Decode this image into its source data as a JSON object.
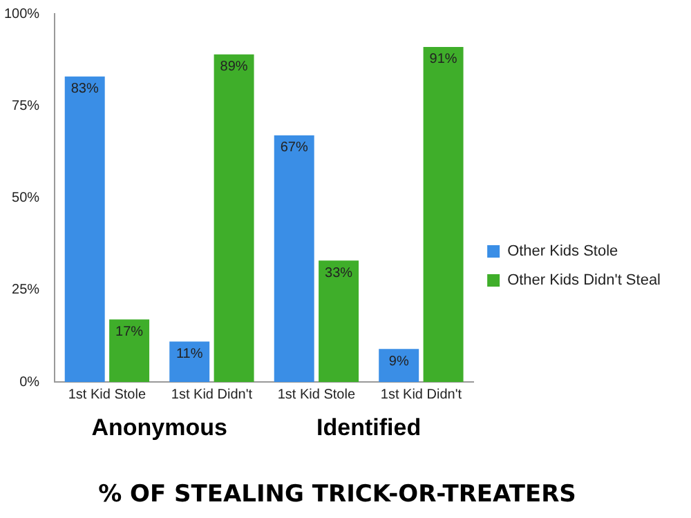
{
  "chart_data": {
    "type": "bar",
    "title": "% OF STEALING TRICK-OR-TREATERS",
    "categories": [
      "1st Kid Stole",
      "1st Kid Didn't",
      "1st Kid Stole",
      "1st Kid Didn't"
    ],
    "series": [
      {
        "name": "Other Kids Stole",
        "color": "#3a8ee6",
        "values": [
          83,
          11,
          67,
          9
        ],
        "value_labels": [
          "83%",
          "11%",
          "67%",
          "9%"
        ]
      },
      {
        "name": "Other Kids Didn't Steal",
        "color": "#3fae2a",
        "values": [
          17,
          89,
          33,
          91
        ],
        "value_labels": [
          "17%",
          "89%",
          "33%",
          "91%"
        ]
      }
    ],
    "ylim": [
      0,
      100
    ],
    "yticks": [
      {
        "value": 0,
        "label": "0%"
      },
      {
        "value": 25,
        "label": "25%"
      },
      {
        "value": 50,
        "label": "50%"
      },
      {
        "value": 75,
        "label": "75%"
      },
      {
        "value": 100,
        "label": "100%"
      }
    ],
    "annotations": [
      "Anonymous",
      "Identified"
    ],
    "grid": false,
    "legend": "right"
  }
}
